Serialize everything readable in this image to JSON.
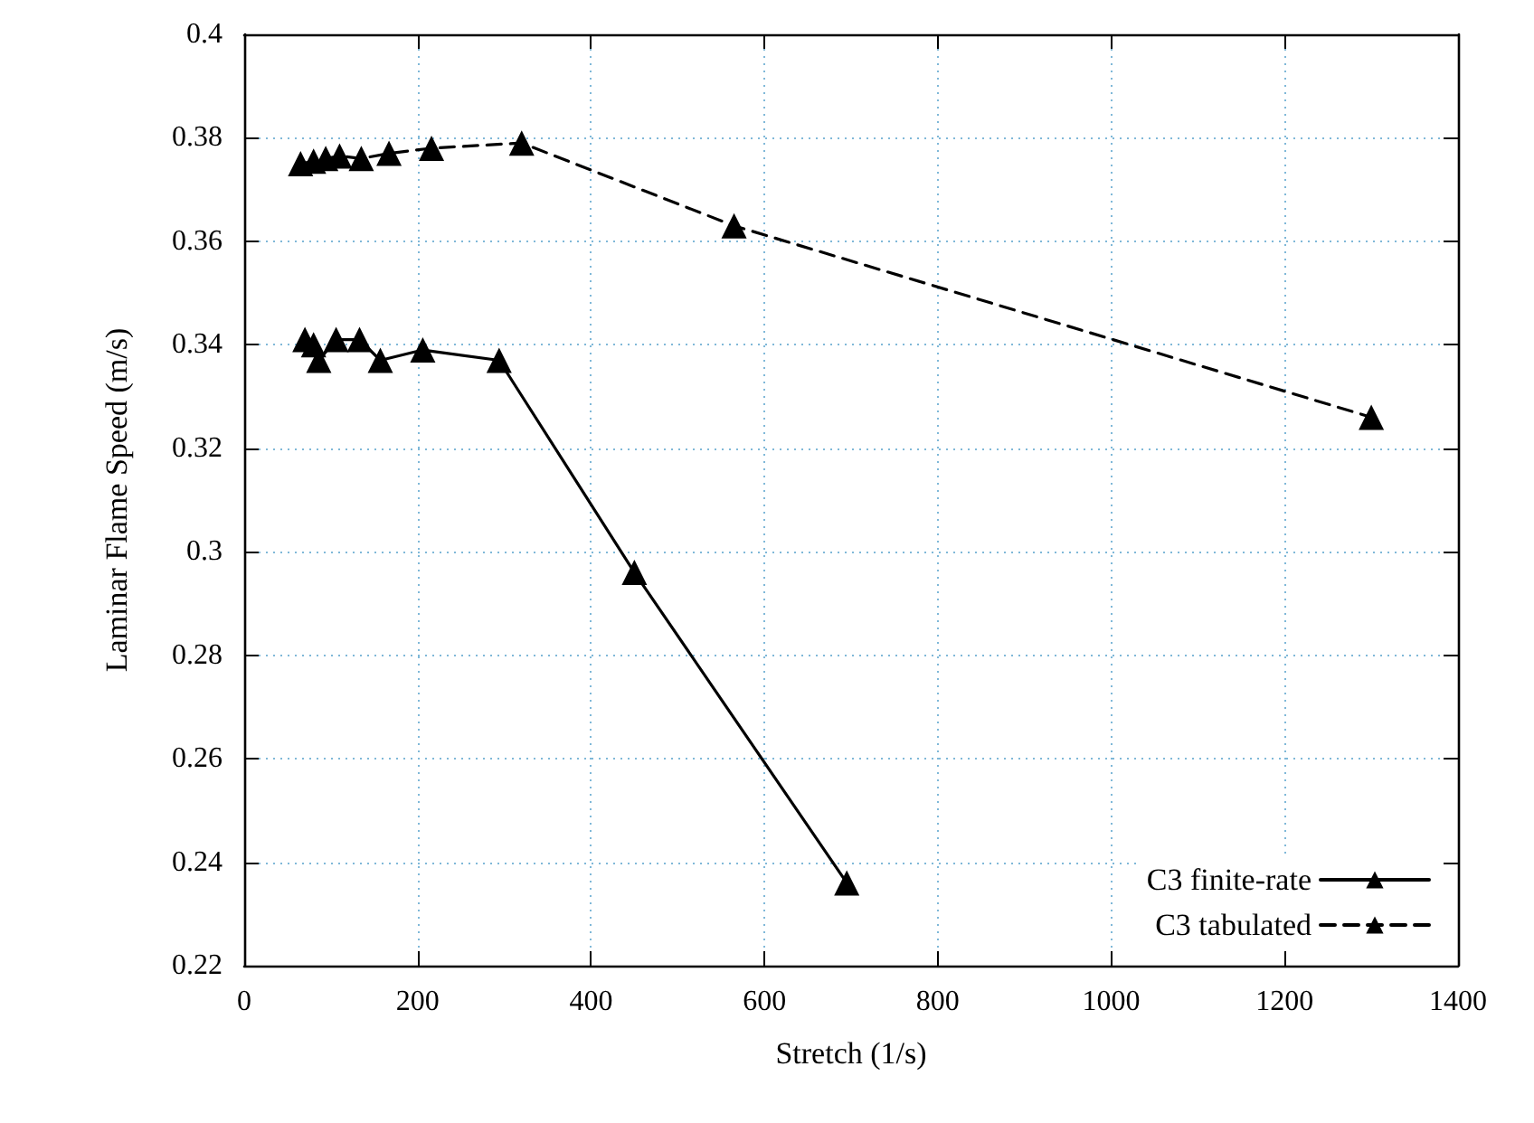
{
  "chart_data": {
    "type": "line",
    "xlabel": "Stretch (1/s)",
    "ylabel": "Laminar Flame Speed (m/s)",
    "xlim": [
      0,
      1400
    ],
    "xticks": [
      0,
      200,
      400,
      600,
      800,
      1000,
      1200,
      1400
    ],
    "ylim": [
      0.22,
      0.4
    ],
    "yticks": [
      0.22,
      0.24,
      0.26,
      0.28,
      0.3,
      0.32,
      0.34,
      0.36,
      0.38,
      0.4
    ],
    "grid": true,
    "legend": "bottom right",
    "marker": "triangle",
    "series": [
      {
        "name": "C3 finite-rate",
        "color": "#000000",
        "line_style": "solid",
        "x": [
          70,
          80,
          86,
          106,
          133,
          157,
          206,
          294,
          450,
          695
        ],
        "values": [
          0.341,
          0.34,
          0.337,
          0.341,
          0.341,
          0.337,
          0.339,
          0.337,
          0.296,
          0.236
        ]
      },
      {
        "name": "C3 tabulated",
        "color": "#000000",
        "line_style": "dashed",
        "x": [
          65,
          80,
          94,
          110,
          135,
          167,
          216,
          320,
          565,
          1300
        ],
        "values": [
          0.375,
          0.3755,
          0.376,
          0.3765,
          0.376,
          0.377,
          0.378,
          0.379,
          0.363,
          0.326
        ]
      }
    ]
  }
}
